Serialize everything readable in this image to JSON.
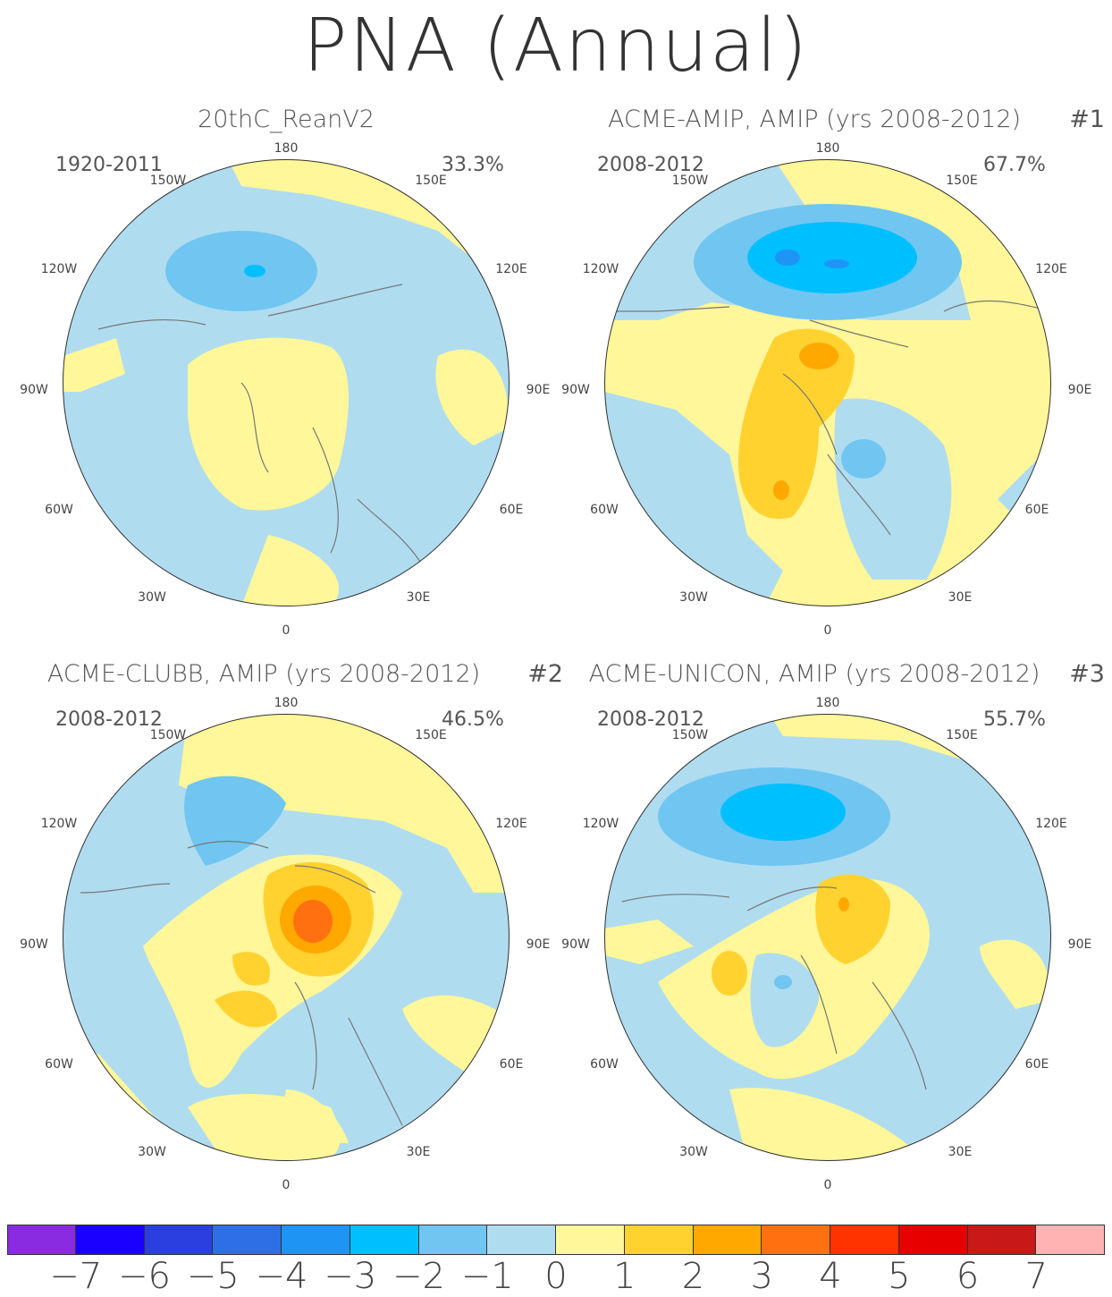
{
  "title": "PNA (Annual)",
  "panels": [
    {
      "title": "20thC_ReanV2",
      "number": "",
      "period": "1920-2011",
      "percent": "33.3%"
    },
    {
      "title": "ACME-AMIP, AMIP (yrs 2008-2012)",
      "number": "#1",
      "period": "2008-2012",
      "percent": "67.7%"
    },
    {
      "title": "ACME-CLUBB, AMIP (yrs 2008-2012)",
      "number": "#2",
      "period": "2008-2012",
      "percent": "46.5%"
    },
    {
      "title": "ACME-UNICON, AMIP (yrs 2008-2012)",
      "number": "#3",
      "period": "2008-2012",
      "percent": "55.7%"
    }
  ],
  "lon_labels": {
    "top": "180",
    "bottom": "0",
    "upper_left": "150W",
    "upper_right": "150E",
    "mid_upper_left": "120W",
    "mid_upper_right": "120E",
    "left": "90W",
    "right": "90E",
    "lower_left": "60W",
    "lower_right": "60E",
    "bottom_left": "30W",
    "bottom_right": "30E"
  },
  "colorbar": {
    "colors": [
      "#8a2be2",
      "#1a00ff",
      "#2b3fe0",
      "#2f6fe5",
      "#1e95f5",
      "#00bfff",
      "#70c6f1",
      "#b0dcf0",
      "#fff799",
      "#ffd230",
      "#ffa800",
      "#ff7010",
      "#ff3300",
      "#e60000",
      "#c81818",
      "#ffb3b3"
    ],
    "ticks": [
      "-7",
      "-6",
      "-5",
      "-4",
      "-3",
      "-2",
      "-1",
      "0",
      "1",
      "2",
      "3",
      "4",
      "5",
      "6",
      "7"
    ]
  }
}
